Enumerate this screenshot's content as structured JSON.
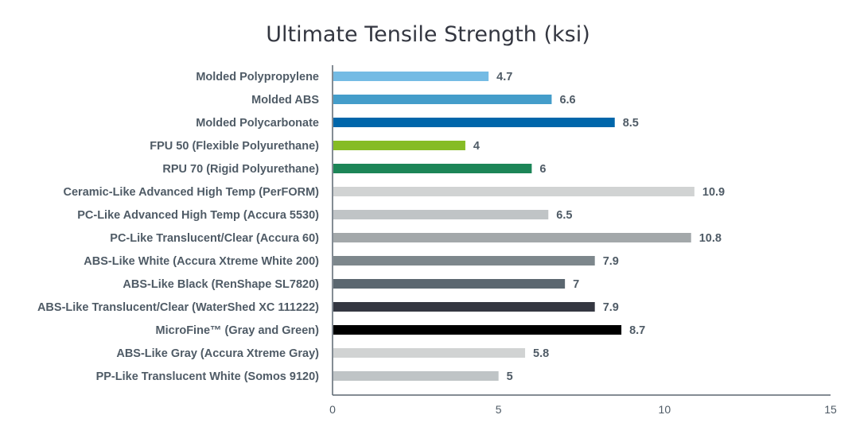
{
  "chart_data": {
    "type": "bar",
    "orientation": "horizontal",
    "title": "Ultimate Tensile Strength (ksi)",
    "xlabel": "",
    "ylabel": "",
    "xlim": [
      0,
      15
    ],
    "xticks": [
      0,
      5,
      10,
      15
    ],
    "grid": false,
    "categories": [
      "Molded Polypropylene",
      "Molded ABS",
      "Molded Polycarbonate",
      "FPU 50 (Flexible Polyurethane)",
      "RPU 70 (Rigid Polyurethane)",
      "Ceramic-Like Advanced High Temp (PerFORM)",
      "PC-Like Advanced High Temp (Accura 5530)",
      "PC-Like Translucent/Clear (Accura 60)",
      "ABS-Like White (Accura Xtreme White 200)",
      "ABS-Like Black (RenShape SL7820)",
      "ABS-Like Translucent/Clear (WaterShed XC 111222)",
      "MicroFine™ (Gray and Green)",
      "ABS-Like Gray (Accura Xtreme Gray)",
      "PP-Like Translucent White (Somos 9120)"
    ],
    "values": [
      4.7,
      6.6,
      8.5,
      4,
      6,
      10.9,
      6.5,
      10.8,
      7.9,
      7,
      7.9,
      8.7,
      5.8,
      5
    ],
    "value_labels": [
      "4.7",
      "6.6",
      "8.5",
      "4",
      "6",
      "10.9",
      "6.5",
      "10.8",
      "7.9",
      "7",
      "7.9",
      "8.7",
      "5.8",
      "5"
    ],
    "colors": [
      "#74bbe4",
      "#449dca",
      "#0066aa",
      "#86bc25",
      "#1c8557",
      "#d1d3d3",
      "#c0c4c6",
      "#a3a8aa",
      "#7d878c",
      "#5b6770",
      "#343741",
      "#000000",
      "#d1d3d3",
      "#bfc4c6"
    ]
  }
}
